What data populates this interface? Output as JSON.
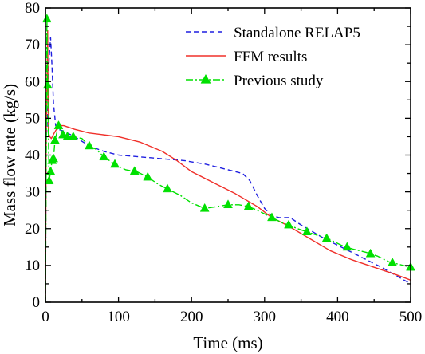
{
  "chart_data": {
    "type": "line",
    "xlabel": "Time (ms)",
    "ylabel": "Mass flow rate (kg/s)",
    "xlim": [
      0,
      500
    ],
    "ylim": [
      0,
      80
    ],
    "x_ticks": [
      0,
      100,
      200,
      300,
      400,
      500
    ],
    "y_ticks": [
      0,
      10,
      20,
      30,
      40,
      50,
      60,
      70,
      80
    ],
    "grid": false,
    "legend_position": "top-right",
    "series": [
      {
        "name": "Standalone RELAP5",
        "color": "#1f1fe0",
        "dash": "dashed",
        "marker": "none",
        "points": [
          [
            0,
            0
          ],
          [
            1,
            44
          ],
          [
            3,
            52
          ],
          [
            5,
            66
          ],
          [
            7,
            72
          ],
          [
            9,
            64
          ],
          [
            11,
            54
          ],
          [
            14,
            48
          ],
          [
            18,
            47
          ],
          [
            25,
            46.5
          ],
          [
            40,
            45
          ],
          [
            60,
            42.5
          ],
          [
            80,
            41
          ],
          [
            100,
            40
          ],
          [
            130,
            39.5
          ],
          [
            160,
            39
          ],
          [
            190,
            38.5
          ],
          [
            220,
            37.5
          ],
          [
            250,
            36
          ],
          [
            270,
            35
          ],
          [
            280,
            33
          ],
          [
            290,
            29
          ],
          [
            300,
            25.5
          ],
          [
            310,
            23.5
          ],
          [
            320,
            23
          ],
          [
            335,
            23
          ],
          [
            350,
            21
          ],
          [
            380,
            17.5
          ],
          [
            420,
            13.5
          ],
          [
            460,
            9.5
          ],
          [
            500,
            5
          ]
        ]
      },
      {
        "name": "FFM results",
        "color": "#f0302a",
        "dash": "solid",
        "marker": "none",
        "points": [
          [
            0,
            0
          ],
          [
            1,
            45
          ],
          [
            3,
            74
          ],
          [
            4,
            46
          ],
          [
            6,
            45
          ],
          [
            8,
            44.5
          ],
          [
            12,
            46
          ],
          [
            18,
            48
          ],
          [
            25,
            48
          ],
          [
            40,
            47
          ],
          [
            60,
            46
          ],
          [
            80,
            45.5
          ],
          [
            100,
            45
          ],
          [
            130,
            43.5
          ],
          [
            160,
            41
          ],
          [
            180,
            38.5
          ],
          [
            200,
            35.5
          ],
          [
            230,
            32.5
          ],
          [
            260,
            29.5
          ],
          [
            290,
            26
          ],
          [
            310,
            23
          ],
          [
            330,
            21
          ],
          [
            360,
            17.5
          ],
          [
            390,
            14
          ],
          [
            420,
            11.5
          ],
          [
            450,
            9.5
          ],
          [
            480,
            7.5
          ],
          [
            500,
            6
          ]
        ]
      },
      {
        "name": "Previous study",
        "color": "#00e000",
        "dash": "dashdot",
        "marker": "triangle",
        "points": [
          [
            0,
            0
          ],
          [
            2,
            77
          ],
          [
            3,
            59
          ],
          [
            5,
            33
          ],
          [
            7,
            35.5
          ],
          [
            9,
            38.5
          ],
          [
            11,
            39
          ],
          [
            13,
            44
          ],
          [
            18,
            48
          ],
          [
            24,
            45.5
          ],
          [
            30,
            45
          ],
          [
            38,
            45
          ],
          [
            50,
            44.5
          ],
          [
            60,
            42.5
          ],
          [
            70,
            41.5
          ],
          [
            80,
            39.5
          ],
          [
            95,
            37.5
          ],
          [
            110,
            36
          ],
          [
            125,
            35.5
          ],
          [
            140,
            34
          ],
          [
            155,
            32
          ],
          [
            170,
            30.5
          ],
          [
            185,
            29
          ],
          [
            200,
            27
          ],
          [
            218,
            25.5
          ],
          [
            235,
            26
          ],
          [
            250,
            26.5
          ],
          [
            265,
            26.5
          ],
          [
            278,
            26
          ],
          [
            290,
            25
          ],
          [
            310,
            23
          ],
          [
            325,
            21.5
          ],
          [
            333,
            21
          ],
          [
            345,
            20
          ],
          [
            360,
            19
          ],
          [
            375,
            18
          ],
          [
            390,
            17
          ],
          [
            405,
            15.5
          ],
          [
            420,
            14.5
          ],
          [
            440,
            13.5
          ],
          [
            455,
            12.5
          ],
          [
            470,
            11
          ],
          [
            490,
            10
          ],
          [
            500,
            9.5
          ]
        ],
        "marker_x": [
          2,
          3,
          5,
          7,
          9,
          11,
          13,
          18,
          24,
          30,
          38,
          60,
          80,
          95,
          122,
          140,
          167,
          218,
          250,
          278,
          310,
          333,
          358,
          385,
          413,
          445,
          475,
          500
        ]
      }
    ]
  }
}
